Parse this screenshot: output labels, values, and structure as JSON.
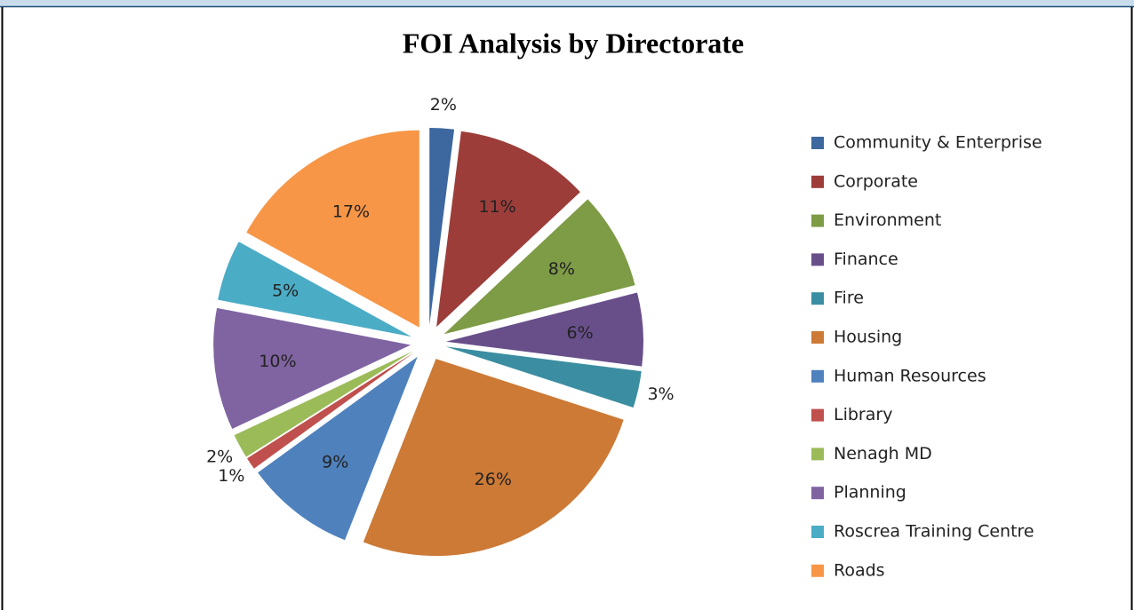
{
  "chart_data": {
    "type": "pie",
    "title": "FOI Analysis by Directorate",
    "categories": [
      "Community & Enterprise",
      "Corporate",
      "Environment",
      "Finance",
      "Fire",
      "Housing",
      "Human Resources",
      "Library",
      "Nenagh MD",
      "Planning",
      "Roscrea Training Centre",
      "Roads"
    ],
    "values": [
      2,
      11,
      8,
      6,
      3,
      26,
      9,
      1,
      2,
      10,
      5,
      17
    ],
    "value_labels": [
      "2%",
      "11%",
      "8%",
      "6%",
      "3%",
      "26%",
      "9%",
      "1%",
      "2%",
      "10%",
      "5%",
      "17%"
    ],
    "colors": [
      "#3c679f",
      "#9c3d3a",
      "#7e9b46",
      "#684f8a",
      "#3b8ea1",
      "#cc7a35",
      "#4f81bd",
      "#c0504d",
      "#9bbb59",
      "#8064a2",
      "#4bacc6",
      "#f79646"
    ],
    "legend": "right"
  }
}
